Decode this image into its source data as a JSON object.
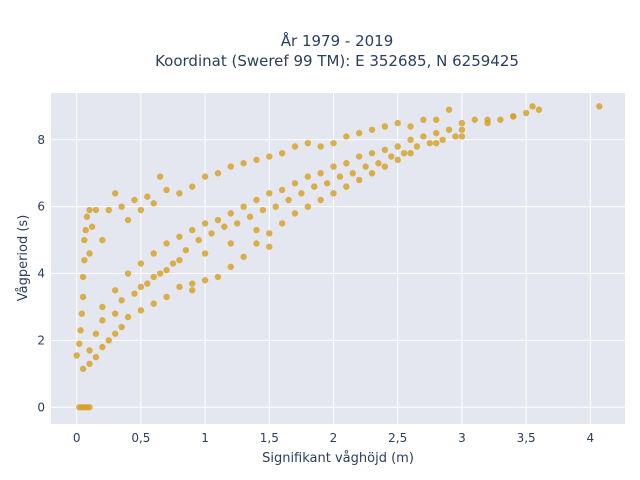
{
  "chart_data": {
    "type": "scatter",
    "title_lines": [
      "År 1979 - 2019",
      "Koordinat (Sweref 99 TM): E 352685, N 6259425"
    ],
    "xlabel": "Signifikant våghöjd (m)",
    "ylabel": "Vågperiod (s)",
    "xlim": [
      -0.2,
      4.27
    ],
    "ylim": [
      -0.5,
      9.4
    ],
    "x_ticks": [
      0,
      0.5,
      1,
      1.5,
      2,
      2.5,
      3,
      3.5,
      4
    ],
    "x_tick_labels": [
      "0",
      "0,5",
      "1",
      "1,5",
      "2",
      "2,5",
      "3",
      "3,5",
      "4"
    ],
    "y_ticks": [
      0,
      2,
      4,
      6,
      8
    ],
    "y_tick_labels": [
      "0",
      "2",
      "4",
      "6",
      "8"
    ],
    "grid": true,
    "marker_color": "#d4a020",
    "plot_background": "#e5e7f0",
    "series": [
      {
        "values_description_skip": null,
        "points": [
          [
            0.02,
            0
          ],
          [
            0.04,
            0
          ],
          [
            0.06,
            0
          ],
          [
            0.08,
            0
          ],
          [
            0.1,
            0
          ],
          [
            0.0,
            1.55
          ],
          [
            0.02,
            1.9
          ],
          [
            0.03,
            2.3
          ],
          [
            0.04,
            2.8
          ],
          [
            0.05,
            3.3
          ],
          [
            0.05,
            3.9
          ],
          [
            0.06,
            4.4
          ],
          [
            0.06,
            5.0
          ],
          [
            0.07,
            5.3
          ],
          [
            0.08,
            5.7
          ],
          [
            0.1,
            5.9
          ],
          [
            0.12,
            5.4
          ],
          [
            0.15,
            5.9
          ],
          [
            0.05,
            1.15
          ],
          [
            0.1,
            1.3
          ],
          [
            0.15,
            1.5
          ],
          [
            0.2,
            1.8
          ],
          [
            0.25,
            2.0
          ],
          [
            0.3,
            2.2
          ],
          [
            0.35,
            2.4
          ],
          [
            0.4,
            2.7
          ],
          [
            0.5,
            2.9
          ],
          [
            0.6,
            3.1
          ],
          [
            0.7,
            3.3
          ],
          [
            0.8,
            3.6
          ],
          [
            0.9,
            3.5
          ],
          [
            1.0,
            3.8
          ],
          [
            1.1,
            3.9
          ],
          [
            1.2,
            4.2
          ],
          [
            1.3,
            4.5
          ],
          [
            1.4,
            4.9
          ],
          [
            1.5,
            5.2
          ],
          [
            1.6,
            5.5
          ],
          [
            1.7,
            5.8
          ],
          [
            1.8,
            6.0
          ],
          [
            1.9,
            6.2
          ],
          [
            2.0,
            6.4
          ],
          [
            2.1,
            6.6
          ],
          [
            2.2,
            6.8
          ],
          [
            2.3,
            7.0
          ],
          [
            2.4,
            7.2
          ],
          [
            2.5,
            7.4
          ],
          [
            2.6,
            7.6
          ],
          [
            2.8,
            7.9
          ],
          [
            3.0,
            8.1
          ],
          [
            0.1,
            4.6
          ],
          [
            0.2,
            5.0
          ],
          [
            0.25,
            5.9
          ],
          [
            0.3,
            6.4
          ],
          [
            0.35,
            6.0
          ],
          [
            0.4,
            5.6
          ],
          [
            0.45,
            6.2
          ],
          [
            0.5,
            5.9
          ],
          [
            0.55,
            6.3
          ],
          [
            0.6,
            6.1
          ],
          [
            0.65,
            6.9
          ],
          [
            0.7,
            6.5
          ],
          [
            0.8,
            6.4
          ],
          [
            0.9,
            6.6
          ],
          [
            1.0,
            6.9
          ],
          [
            1.1,
            7.0
          ],
          [
            1.2,
            7.2
          ],
          [
            1.3,
            7.3
          ],
          [
            1.4,
            7.4
          ],
          [
            1.5,
            7.5
          ],
          [
            1.6,
            7.6
          ],
          [
            1.7,
            7.8
          ],
          [
            1.8,
            7.9
          ],
          [
            1.9,
            7.8
          ],
          [
            2.0,
            7.9
          ],
          [
            2.1,
            8.1
          ],
          [
            2.2,
            8.2
          ],
          [
            2.3,
            8.3
          ],
          [
            2.4,
            8.4
          ],
          [
            2.5,
            8.5
          ],
          [
            2.6,
            8.4
          ],
          [
            2.7,
            8.6
          ],
          [
            2.8,
            8.6
          ],
          [
            2.9,
            8.9
          ],
          [
            3.0,
            8.5
          ],
          [
            3.1,
            8.6
          ],
          [
            3.2,
            8.5
          ],
          [
            3.3,
            8.6
          ],
          [
            3.4,
            8.7
          ],
          [
            3.5,
            8.8
          ],
          [
            3.55,
            9.0
          ],
          [
            3.6,
            8.9
          ],
          [
            4.07,
            9.0
          ],
          [
            0.2,
            3.0
          ],
          [
            0.3,
            3.5
          ],
          [
            0.4,
            4.0
          ],
          [
            0.5,
            4.3
          ],
          [
            0.6,
            4.6
          ],
          [
            0.7,
            4.9
          ],
          [
            0.8,
            5.1
          ],
          [
            0.9,
            5.3
          ],
          [
            1.0,
            5.5
          ],
          [
            1.1,
            5.6
          ],
          [
            1.2,
            5.8
          ],
          [
            1.3,
            6.0
          ],
          [
            1.4,
            6.2
          ],
          [
            1.5,
            6.4
          ],
          [
            1.6,
            6.5
          ],
          [
            1.7,
            6.7
          ],
          [
            1.8,
            6.9
          ],
          [
            1.9,
            7.0
          ],
          [
            2.0,
            7.2
          ],
          [
            2.1,
            7.3
          ],
          [
            2.2,
            7.5
          ],
          [
            2.3,
            7.6
          ],
          [
            2.4,
            7.7
          ],
          [
            2.5,
            7.8
          ],
          [
            2.6,
            8.0
          ],
          [
            2.7,
            8.1
          ],
          [
            2.8,
            8.2
          ],
          [
            2.9,
            8.3
          ],
          [
            3.0,
            8.3
          ],
          [
            3.2,
            8.6
          ],
          [
            3.4,
            8.7
          ],
          [
            0.8,
            4.4
          ],
          [
            1.0,
            4.6
          ],
          [
            1.2,
            4.9
          ],
          [
            1.4,
            5.3
          ],
          [
            1.5,
            4.8
          ],
          [
            0.5,
            3.6
          ],
          [
            0.6,
            3.9
          ],
          [
            0.7,
            4.1
          ],
          [
            0.9,
            3.7
          ],
          [
            0.3,
            2.8
          ],
          [
            0.15,
            2.2
          ],
          [
            0.1,
            1.7
          ],
          [
            0.2,
            2.6
          ],
          [
            0.35,
            3.2
          ],
          [
            0.45,
            3.4
          ],
          [
            0.55,
            3.7
          ],
          [
            0.65,
            4.0
          ],
          [
            0.75,
            4.3
          ],
          [
            0.85,
            4.7
          ],
          [
            0.95,
            5.0
          ],
          [
            1.05,
            5.2
          ],
          [
            1.15,
            5.4
          ],
          [
            1.25,
            5.5
          ],
          [
            1.35,
            5.7
          ],
          [
            1.45,
            5.9
          ],
          [
            1.55,
            6.0
          ],
          [
            1.65,
            6.2
          ],
          [
            1.75,
            6.4
          ],
          [
            1.85,
            6.6
          ],
          [
            1.95,
            6.7
          ],
          [
            2.05,
            6.9
          ],
          [
            2.15,
            7.0
          ],
          [
            2.25,
            7.2
          ],
          [
            2.35,
            7.3
          ],
          [
            2.45,
            7.5
          ],
          [
            2.55,
            7.6
          ],
          [
            2.65,
            7.8
          ],
          [
            2.75,
            7.9
          ],
          [
            2.85,
            8.0
          ],
          [
            2.95,
            8.1
          ]
        ]
      }
    ]
  }
}
